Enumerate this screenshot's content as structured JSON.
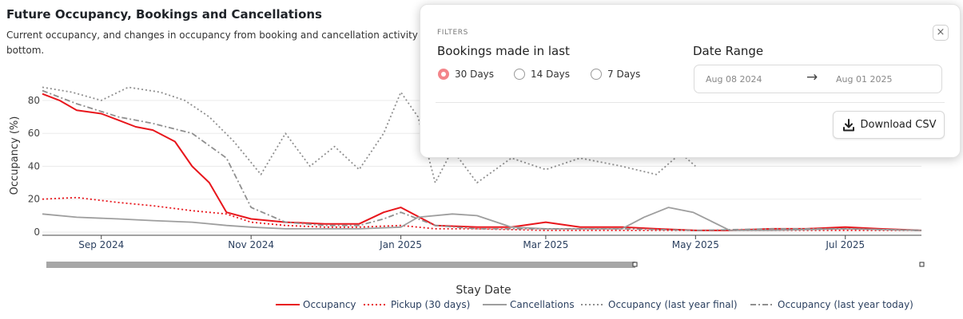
{
  "header": {
    "title": "Future Occupancy, Bookings and Cancellations",
    "subtitle_line1": "Current occupancy, and changes in occupancy from booking and cancellation activity in th",
    "subtitle_line2": "bottom."
  },
  "filters": {
    "section_label": "FILTERS",
    "close_label": "×",
    "bookings_title": "Bookings made in last",
    "options": [
      {
        "label": "30 Days",
        "checked": true
      },
      {
        "label": "14 Days",
        "checked": false
      },
      {
        "label": "7 Days",
        "checked": false
      }
    ],
    "date_range_title": "Date Range",
    "date_start": "Aug 08 2024",
    "date_arrow": "→",
    "date_end": "Aug 01 2025",
    "download_label": "Download CSV",
    "download_icon": "download-icon"
  },
  "chart_data": {
    "type": "line",
    "ylabel": "Occupancy (%)",
    "xlabel": "Stay Date",
    "ylim": [
      0,
      95
    ],
    "y_ticks": [
      0,
      20,
      40,
      60,
      80
    ],
    "x_ticks": [
      "Sep 2024",
      "Nov 2024",
      "Jan 2025",
      "Mar 2025",
      "May 2025",
      "Jul 2025"
    ],
    "x_range": [
      "2024-08-08",
      "2025-08-01"
    ],
    "grid": true,
    "legend_position": "bottom",
    "series": [
      {
        "name": "Occupancy",
        "color": "#e8161c",
        "style": "solid",
        "x": [
          "2024-08-08",
          "2024-08-15",
          "2024-08-22",
          "2024-09-01",
          "2024-09-08",
          "2024-09-15",
          "2024-09-22",
          "2024-10-01",
          "2024-10-08",
          "2024-10-15",
          "2024-10-22",
          "2024-11-01",
          "2024-11-15",
          "2024-12-01",
          "2024-12-15",
          "2024-12-25",
          "2025-01-01",
          "2025-01-15",
          "2025-02-01",
          "2025-02-15",
          "2025-03-01",
          "2025-03-15",
          "2025-04-01",
          "2025-04-15",
          "2025-05-01",
          "2025-05-15",
          "2025-06-01",
          "2025-06-15",
          "2025-07-01",
          "2025-07-15",
          "2025-08-01"
        ],
        "y": [
          84,
          80,
          74,
          72,
          68,
          64,
          62,
          55,
          40,
          30,
          12,
          8,
          6,
          5,
          5,
          12,
          15,
          4,
          3,
          3,
          6,
          3,
          3,
          2,
          1,
          1,
          2,
          2,
          3,
          2,
          1
        ]
      },
      {
        "name": "Pickup (30 days)",
        "color": "#e8161c",
        "style": "dotted",
        "x": [
          "2024-08-08",
          "2024-08-22",
          "2024-09-08",
          "2024-09-22",
          "2024-10-08",
          "2024-10-22",
          "2024-11-01",
          "2024-11-15",
          "2024-12-01",
          "2024-12-15",
          "2025-01-01",
          "2025-01-15",
          "2025-02-01",
          "2025-03-01",
          "2025-04-01",
          "2025-05-01",
          "2025-06-01",
          "2025-07-01",
          "2025-08-01"
        ],
        "y": [
          20,
          21,
          18,
          16,
          13,
          11,
          6,
          4,
          3,
          3,
          4,
          2,
          2,
          1,
          1,
          1,
          1,
          1,
          1
        ]
      },
      {
        "name": "Cancellations",
        "color": "#9e9e9e",
        "style": "solid",
        "x": [
          "2024-08-08",
          "2024-08-22",
          "2024-09-08",
          "2024-09-22",
          "2024-10-08",
          "2024-10-22",
          "2024-11-01",
          "2024-11-15",
          "2024-12-01",
          "2024-12-15",
          "2025-01-01",
          "2025-01-08",
          "2025-01-22",
          "2025-02-01",
          "2025-02-15",
          "2025-03-01",
          "2025-04-01",
          "2025-04-10",
          "2025-04-20",
          "2025-04-30",
          "2025-05-15",
          "2025-06-01",
          "2025-07-01",
          "2025-08-01"
        ],
        "y": [
          11,
          9,
          8,
          7,
          6,
          4,
          3,
          2,
          2,
          2,
          3,
          9,
          11,
          10,
          3,
          2,
          2,
          9,
          15,
          12,
          1,
          1,
          2,
          1
        ]
      },
      {
        "name": "Occupancy (last year final)",
        "color": "#8f8f8f",
        "style": "dotted",
        "x": [
          "2024-08-08",
          "2024-08-20",
          "2024-09-01",
          "2024-09-12",
          "2024-09-25",
          "2024-10-05",
          "2024-10-15",
          "2024-10-25",
          "2024-11-05",
          "2024-11-15",
          "2024-11-25",
          "2024-12-05",
          "2024-12-15",
          "2024-12-25",
          "2025-01-01",
          "2025-01-08",
          "2025-01-15",
          "2025-01-22",
          "2025-02-01",
          "2025-02-15",
          "2025-03-01",
          "2025-03-15",
          "2025-04-01",
          "2025-04-15",
          "2025-04-25",
          "2025-05-01"
        ],
        "y": [
          88,
          85,
          80,
          88,
          85,
          80,
          70,
          55,
          35,
          60,
          40,
          52,
          38,
          60,
          85,
          70,
          30,
          50,
          30,
          45,
          38,
          45,
          40,
          35,
          48,
          40
        ]
      },
      {
        "name": "Occupancy (last year today)",
        "color": "#8f8f8f",
        "style": "dashdot",
        "x": [
          "2024-08-08",
          "2024-08-22",
          "2024-09-08",
          "2024-09-22",
          "2024-10-08",
          "2024-10-22",
          "2024-11-01",
          "2024-11-15",
          "2024-12-01",
          "2024-12-15",
          "2024-12-25",
          "2025-01-01",
          "2025-01-15",
          "2025-02-01",
          "2025-03-01",
          "2025-04-01",
          "2025-05-01",
          "2025-06-01",
          "2025-07-01",
          "2025-08-01"
        ],
        "y": [
          86,
          78,
          70,
          66,
          60,
          45,
          15,
          6,
          4,
          4,
          8,
          12,
          4,
          2,
          2,
          2,
          1,
          2,
          2,
          1
        ]
      }
    ]
  }
}
